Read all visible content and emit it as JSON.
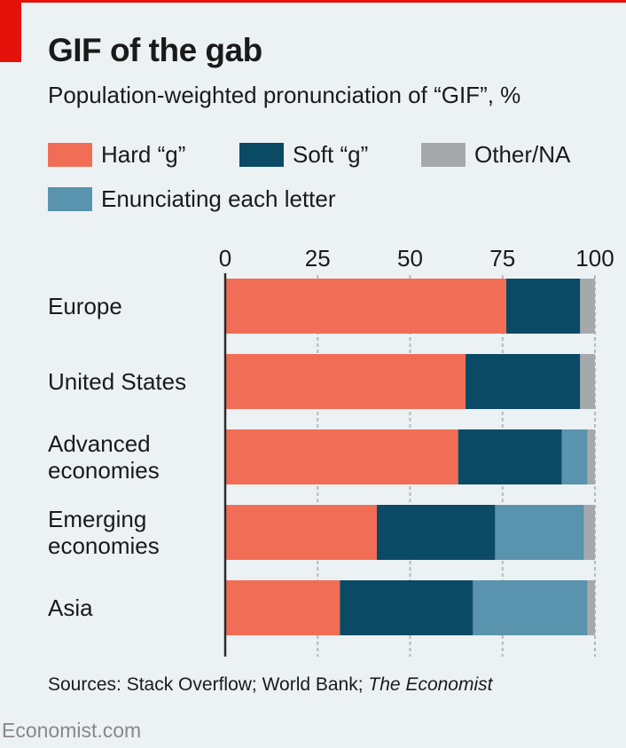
{
  "title": "GIF of the gab",
  "subtitle": "Population-weighted pronunciation of “GIF”, %",
  "source_prefix": "Sources: Stack Overflow; World Bank; ",
  "source_italic": "The Economist",
  "brand": "Economist.com",
  "colors": {
    "hard_g": "#f26d55",
    "soft_g": "#0a4a64",
    "other_na": "#a6a9ac",
    "enunciating": "#5a93ad",
    "gridline": "#b5b9bc",
    "bar_background": "#ffffff",
    "accent": "#e3120b"
  },
  "chart_data": {
    "type": "bar",
    "orientation": "horizontal",
    "stacked": true,
    "categories": [
      "Europe",
      "United States",
      "Advanced\neconomies",
      "Emerging\neconomies",
      "Asia"
    ],
    "xlim": [
      0,
      100
    ],
    "xticks": [
      0,
      25,
      50,
      75,
      100
    ],
    "grid": true,
    "legend_position": "top",
    "series": [
      {
        "name": "Hard “g”",
        "key": "hard_g",
        "values": [
          76,
          65,
          63,
          41,
          31
        ]
      },
      {
        "name": "Soft “g”",
        "key": "soft_g",
        "values": [
          20,
          31,
          28,
          32,
          36
        ]
      },
      {
        "name": "Enunciating each letter",
        "key": "enunciating",
        "values": [
          0,
          0,
          7,
          24,
          31
        ]
      },
      {
        "name": "Other/NA",
        "key": "other_na",
        "values": [
          4,
          4,
          2,
          3,
          2
        ]
      }
    ],
    "legend_order": [
      "hard_g",
      "soft_g",
      "other_na",
      "enunciating"
    ]
  }
}
